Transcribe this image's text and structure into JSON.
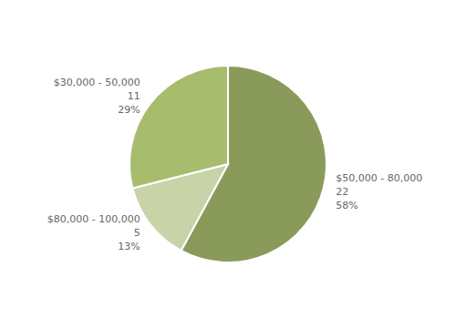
{
  "chart_data": {
    "type": "pie",
    "categories": [
      "$50,000 - 80,000",
      "$80,000 - 100,000",
      "$30,000 - 50,000"
    ],
    "values": [
      22,
      5,
      11
    ],
    "percents": [
      58,
      13,
      29
    ],
    "percent_labels": [
      "58%",
      "13%",
      "29%"
    ],
    "colors": [
      "#8a9a5b",
      "#c8d4a8",
      "#a8bc6e"
    ],
    "data_labels": true
  }
}
